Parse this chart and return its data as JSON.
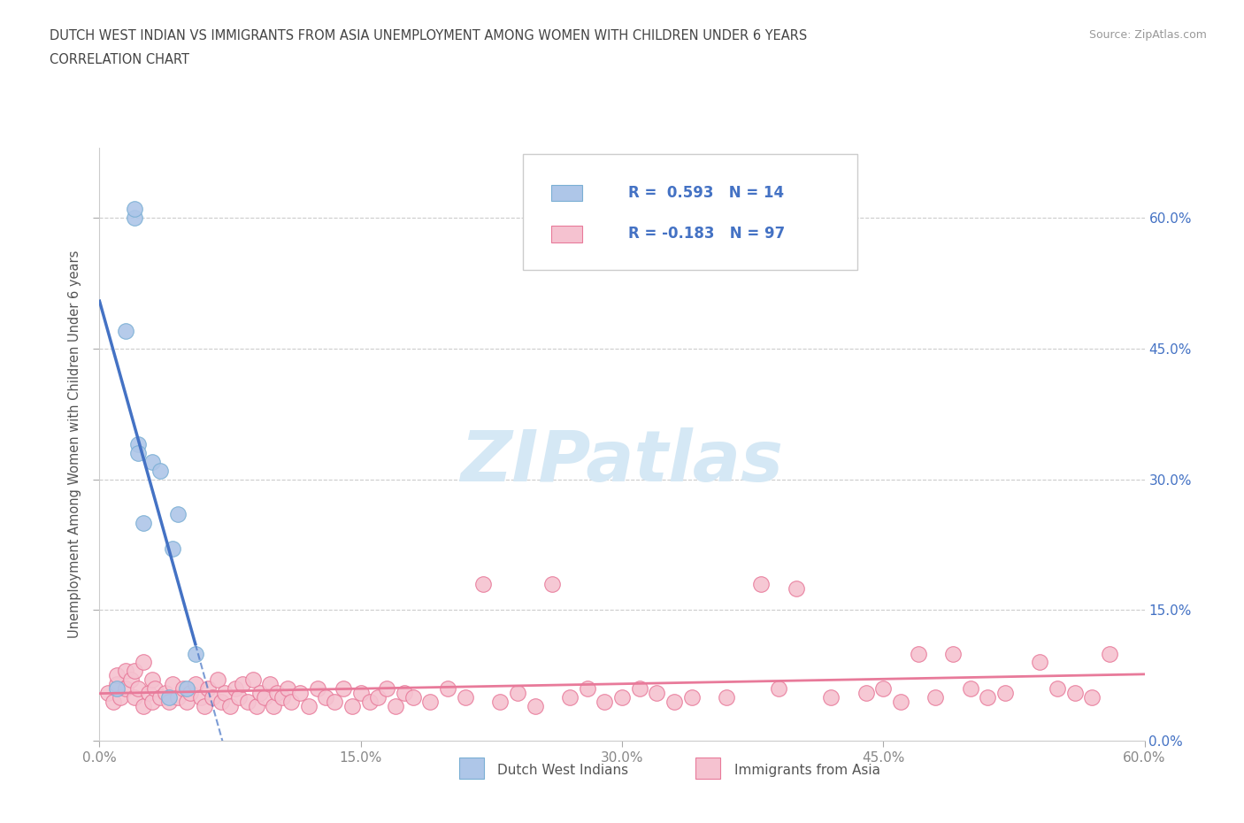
{
  "title_line1": "DUTCH WEST INDIAN VS IMMIGRANTS FROM ASIA UNEMPLOYMENT AMONG WOMEN WITH CHILDREN UNDER 6 YEARS",
  "title_line2": "CORRELATION CHART",
  "source_text": "Source: ZipAtlas.com",
  "ylabel": "Unemployment Among Women with Children Under 6 years",
  "xlim": [
    0.0,
    0.6
  ],
  "ylim": [
    0.0,
    0.68
  ],
  "xticks": [
    0.0,
    0.15,
    0.3,
    0.45,
    0.6
  ],
  "yticks": [
    0.0,
    0.15,
    0.3,
    0.45,
    0.6
  ],
  "grid_color": "#cccccc",
  "background_color": "#ffffff",
  "watermark_text": "ZIPatlas",
  "watermark_color": "#d5e8f5",
  "blue_scatter_x": [
    0.01,
    0.015,
    0.02,
    0.02,
    0.022,
    0.022,
    0.025,
    0.03,
    0.035,
    0.04,
    0.042,
    0.045,
    0.05,
    0.055
  ],
  "blue_scatter_y": [
    0.06,
    0.47,
    0.6,
    0.61,
    0.34,
    0.33,
    0.25,
    0.32,
    0.31,
    0.05,
    0.22,
    0.26,
    0.06,
    0.1
  ],
  "pink_scatter_x": [
    0.005,
    0.008,
    0.01,
    0.01,
    0.012,
    0.015,
    0.015,
    0.018,
    0.02,
    0.02,
    0.022,
    0.025,
    0.025,
    0.028,
    0.03,
    0.03,
    0.032,
    0.035,
    0.038,
    0.04,
    0.042,
    0.045,
    0.048,
    0.05,
    0.052,
    0.055,
    0.058,
    0.06,
    0.062,
    0.065,
    0.068,
    0.07,
    0.072,
    0.075,
    0.078,
    0.08,
    0.082,
    0.085,
    0.088,
    0.09,
    0.092,
    0.095,
    0.098,
    0.1,
    0.102,
    0.105,
    0.108,
    0.11,
    0.115,
    0.12,
    0.125,
    0.13,
    0.135,
    0.14,
    0.145,
    0.15,
    0.155,
    0.16,
    0.165,
    0.17,
    0.175,
    0.18,
    0.19,
    0.2,
    0.21,
    0.22,
    0.23,
    0.24,
    0.25,
    0.26,
    0.27,
    0.28,
    0.29,
    0.3,
    0.31,
    0.32,
    0.33,
    0.34,
    0.36,
    0.38,
    0.39,
    0.4,
    0.42,
    0.44,
    0.45,
    0.46,
    0.47,
    0.48,
    0.49,
    0.5,
    0.51,
    0.52,
    0.54,
    0.55,
    0.56,
    0.57,
    0.58
  ],
  "pink_scatter_y": [
    0.055,
    0.045,
    0.065,
    0.075,
    0.05,
    0.06,
    0.08,
    0.07,
    0.05,
    0.08,
    0.06,
    0.04,
    0.09,
    0.055,
    0.045,
    0.07,
    0.06,
    0.05,
    0.055,
    0.045,
    0.065,
    0.05,
    0.06,
    0.045,
    0.055,
    0.065,
    0.05,
    0.04,
    0.06,
    0.05,
    0.07,
    0.045,
    0.055,
    0.04,
    0.06,
    0.05,
    0.065,
    0.045,
    0.07,
    0.04,
    0.055,
    0.05,
    0.065,
    0.04,
    0.055,
    0.05,
    0.06,
    0.045,
    0.055,
    0.04,
    0.06,
    0.05,
    0.045,
    0.06,
    0.04,
    0.055,
    0.045,
    0.05,
    0.06,
    0.04,
    0.055,
    0.05,
    0.045,
    0.06,
    0.05,
    0.18,
    0.045,
    0.055,
    0.04,
    0.18,
    0.05,
    0.06,
    0.045,
    0.05,
    0.06,
    0.055,
    0.045,
    0.05,
    0.05,
    0.18,
    0.06,
    0.175,
    0.05,
    0.055,
    0.06,
    0.045,
    0.1,
    0.05,
    0.1,
    0.06,
    0.05,
    0.055,
    0.09,
    0.06,
    0.055,
    0.05,
    0.1
  ],
  "blue_R": 0.593,
  "blue_N": 14,
  "pink_R": -0.183,
  "pink_N": 97,
  "blue_line_color": "#4472c4",
  "pink_line_color": "#e87a9a",
  "blue_scatter_facecolor": "#aec6e8",
  "pink_scatter_facecolor": "#f5c2d0",
  "blue_scatter_edgecolor": "#7aafd4",
  "pink_scatter_edgecolor": "#e87a9a",
  "legend_box_blue_face": "#aec6e8",
  "legend_box_pink_face": "#f5c2d0",
  "legend_text_color": "#4472c4",
  "legend_label_blue": "Dutch West Indians",
  "legend_label_pink": "Immigrants from Asia",
  "axis_label_color": "#555555",
  "tick_label_color": "#888888",
  "right_tick_color": "#4472c4"
}
